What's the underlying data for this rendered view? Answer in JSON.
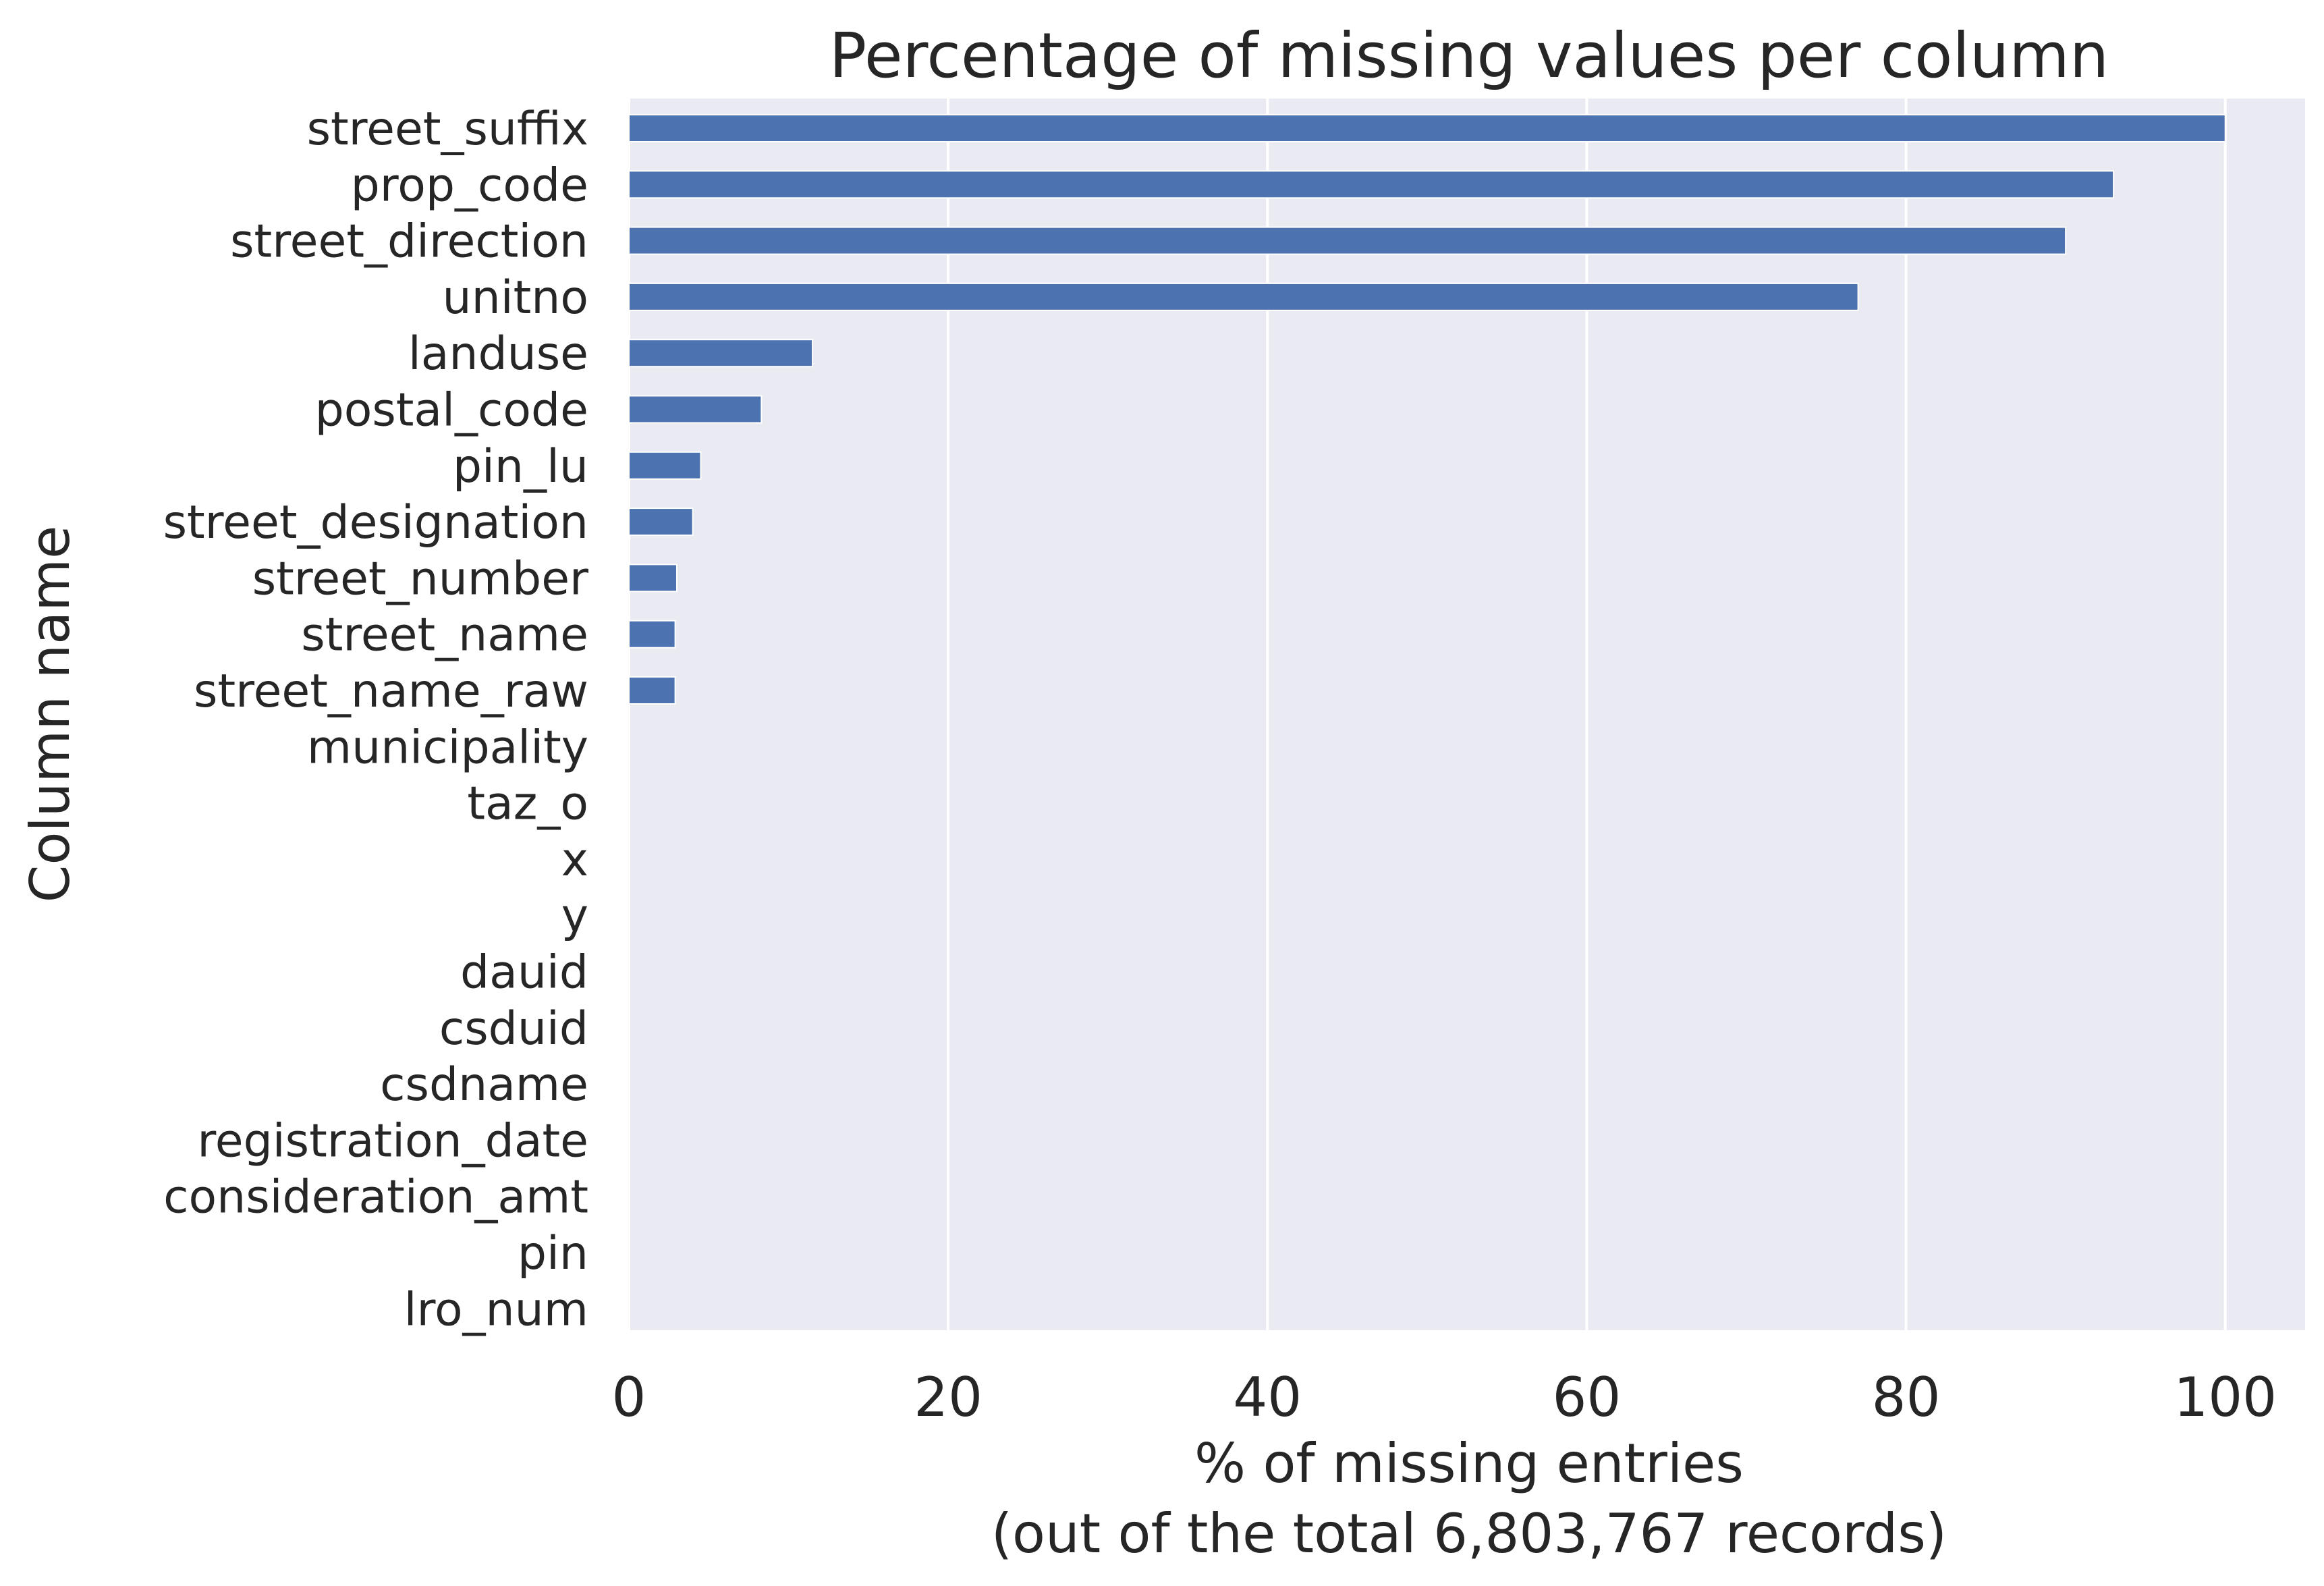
{
  "chart_data": {
    "type": "bar",
    "orientation": "horizontal",
    "title": "Percentage of missing values per column",
    "xlabel_lines": [
      "% of missing entries",
      "(out of the total 6,803,767 records)"
    ],
    "ylabel": "Column name",
    "xlim": [
      0,
      105
    ],
    "xticks": [
      0,
      20,
      40,
      60,
      80,
      100
    ],
    "grid": true,
    "categories": [
      "street_suffix",
      "prop_code",
      "street_direction",
      "unitno",
      "landuse",
      "postal_code",
      "pin_lu",
      "street_designation",
      "street_number",
      "street_name",
      "street_name_raw",
      "municipality",
      "taz_o",
      "x",
      "y",
      "dauid",
      "csduid",
      "csdname",
      "registration_date",
      "consideration_amt",
      "pin",
      "lro_num"
    ],
    "values": [
      100,
      93,
      90,
      77,
      11.5,
      8.3,
      4.5,
      4.0,
      3.0,
      2.9,
      2.9,
      0,
      0,
      0,
      0,
      0,
      0,
      0,
      0,
      0,
      0,
      0
    ],
    "colors": {
      "bar": "#4c72b0",
      "background": "#eaeaf2",
      "grid": "#ffffff",
      "text": "#262626"
    }
  }
}
